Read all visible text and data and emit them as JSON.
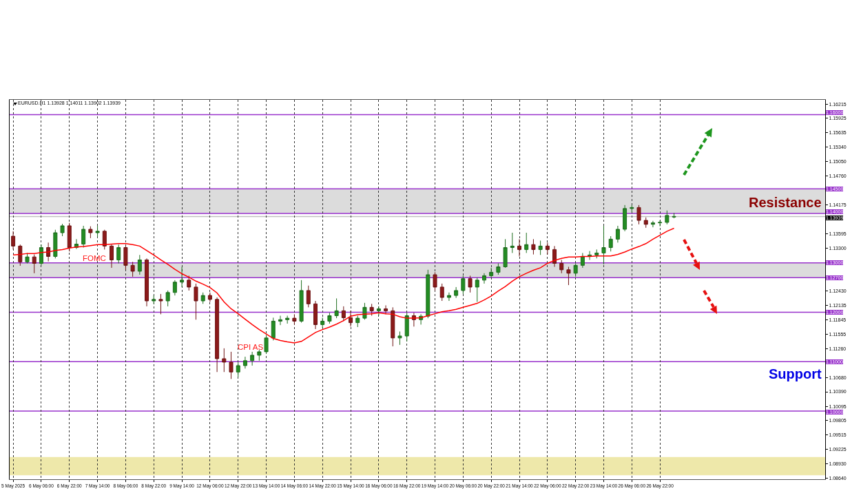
{
  "chart_data": {
    "type": "candlestick",
    "title": "EURUSD.H1 1.13928 1.14011 1.13902 1.13939",
    "categories": [
      "5 May 2025",
      null,
      null,
      null,
      "6 May 06:00",
      null,
      null,
      null,
      "6 May 22:00",
      null,
      null,
      null,
      "7 May 14:00",
      null,
      null,
      null,
      "8 May 06:00",
      null,
      null,
      null,
      "8 May 22:00",
      null,
      null,
      null,
      "9 May 14:00",
      null,
      null,
      null,
      "12 May 06:00",
      null,
      null,
      null,
      "12 May 22:00",
      null,
      null,
      null,
      "13 May 14:00",
      null,
      null,
      null,
      "14 May 06:00",
      null,
      null,
      null,
      "14 May 22:00",
      null,
      null,
      null,
      "15 May 14:00",
      null,
      null,
      null,
      "16 May 06:00",
      null,
      null,
      null,
      "16 May 22:00",
      null,
      null,
      null,
      "19 May 14:00",
      null,
      null,
      null,
      "20 May 06:00",
      null,
      null,
      null,
      "20 May 22:00",
      null,
      null,
      null,
      "21 May 14:00",
      null,
      null,
      null,
      "22 May 06:00",
      null,
      null,
      null,
      "22 May 22:00",
      null,
      null,
      null,
      "23 May 14:00",
      null,
      null,
      null,
      "26 May 06:00",
      null,
      null,
      null,
      "26 May 22:00",
      null,
      null,
      null,
      null,
      null,
      null,
      null,
      null,
      null,
      null,
      null,
      null,
      null,
      null,
      null,
      null,
      null,
      null,
      null,
      null,
      null,
      null,
      null
    ],
    "ohlc": [
      [
        1.1354,
        1.1364,
        1.1327,
        1.1334
      ],
      [
        1.1334,
        1.1337,
        1.1294,
        1.1302
      ],
      [
        1.1302,
        1.132,
        1.1299,
        1.1312
      ],
      [
        1.1312,
        1.1317,
        1.1279,
        1.1299
      ],
      [
        1.1299,
        1.1337,
        1.1295,
        1.1331
      ],
      [
        1.1331,
        1.1341,
        1.1303,
        1.1313
      ],
      [
        1.1313,
        1.1367,
        1.1309,
        1.1361
      ],
      [
        1.1361,
        1.1379,
        1.1354,
        1.1375
      ],
      [
        1.1375,
        1.1381,
        1.1323,
        1.1331
      ],
      [
        1.1331,
        1.1348,
        1.1328,
        1.1338
      ],
      [
        1.1338,
        1.1375,
        1.1331,
        1.1368
      ],
      [
        1.1368,
        1.1374,
        1.135,
        1.1361
      ],
      [
        1.1361,
        1.1375,
        1.1352,
        1.1364
      ],
      [
        1.1364,
        1.1367,
        1.1327,
        1.1334
      ],
      [
        1.1334,
        1.1337,
        1.129,
        1.1306
      ],
      [
        1.1306,
        1.1337,
        1.1299,
        1.1331
      ],
      [
        1.1331,
        1.1334,
        1.1286,
        1.1295
      ],
      [
        1.1295,
        1.1302,
        1.1272,
        1.1283
      ],
      [
        1.1283,
        1.1316,
        1.1276,
        1.1306
      ],
      [
        1.1306,
        1.1309,
        1.1212,
        1.1223
      ],
      [
        1.1223,
        1.1234,
        1.1217,
        1.1226
      ],
      [
        1.1226,
        1.1237,
        1.1196,
        1.1223
      ],
      [
        1.1223,
        1.1244,
        1.1212,
        1.124
      ],
      [
        1.124,
        1.1265,
        1.1234,
        1.1261
      ],
      [
        1.1261,
        1.1292,
        1.1251,
        1.1265
      ],
      [
        1.1265,
        1.1274,
        1.1244,
        1.1251
      ],
      [
        1.1251,
        1.1258,
        1.1185,
        1.1223
      ],
      [
        1.1223,
        1.124,
        1.1217,
        1.1234
      ],
      [
        1.1234,
        1.124,
        1.1221,
        1.1226
      ],
      [
        1.1226,
        1.123,
        1.1079,
        1.1106
      ],
      [
        1.1106,
        1.1127,
        1.1079,
        1.1099
      ],
      [
        1.1099,
        1.112,
        1.1065,
        1.1079
      ],
      [
        1.1079,
        1.1099,
        1.1069,
        1.1092
      ],
      [
        1.1092,
        1.111,
        1.1086,
        1.1102
      ],
      [
        1.1102,
        1.112,
        1.1092,
        1.1113
      ],
      [
        1.1113,
        1.1124,
        1.1102,
        1.112
      ],
      [
        1.112,
        1.1154,
        1.1116,
        1.1148
      ],
      [
        1.1148,
        1.1189,
        1.1143,
        1.1182
      ],
      [
        1.1182,
        1.1193,
        1.1174,
        1.1185
      ],
      [
        1.1185,
        1.1193,
        1.1177,
        1.1188
      ],
      [
        1.1188,
        1.1196,
        1.1175,
        1.1182
      ],
      [
        1.1182,
        1.1265,
        1.1179,
        1.1244
      ],
      [
        1.1244,
        1.1254,
        1.121,
        1.1217
      ],
      [
        1.1217,
        1.1223,
        1.1166,
        1.1175
      ],
      [
        1.1175,
        1.1189,
        1.1168,
        1.1182
      ],
      [
        1.1182,
        1.1199,
        1.1177,
        1.1193
      ],
      [
        1.1193,
        1.1228,
        1.1188,
        1.1203
      ],
      [
        1.1203,
        1.1212,
        1.1182,
        1.1189
      ],
      [
        1.1189,
        1.1203,
        1.1171,
        1.1179
      ],
      [
        1.1179,
        1.1193,
        1.117,
        1.1188
      ],
      [
        1.1188,
        1.1219,
        1.1185,
        1.121
      ],
      [
        1.121,
        1.1217,
        1.1193,
        1.1203
      ],
      [
        1.1203,
        1.1212,
        1.1193,
        1.1207
      ],
      [
        1.1207,
        1.1214,
        1.1196,
        1.1203
      ],
      [
        1.1203,
        1.121,
        1.1131,
        1.1148
      ],
      [
        1.1148,
        1.1161,
        1.1134,
        1.1152
      ],
      [
        1.1152,
        1.1199,
        1.1141,
        1.1193
      ],
      [
        1.1193,
        1.1199,
        1.1171,
        1.1185
      ],
      [
        1.1185,
        1.1196,
        1.1175,
        1.1192
      ],
      [
        1.1192,
        1.1286,
        1.1188,
        1.1276
      ],
      [
        1.1276,
        1.1281,
        1.1244,
        1.1251
      ],
      [
        1.1251,
        1.1258,
        1.1223,
        1.123
      ],
      [
        1.123,
        1.124,
        1.1223,
        1.1234
      ],
      [
        1.1234,
        1.1251,
        1.1229,
        1.1244
      ],
      [
        1.1244,
        1.1274,
        1.1237,
        1.1268
      ],
      [
        1.1268,
        1.1274,
        1.124,
        1.1251
      ],
      [
        1.1251,
        1.127,
        1.1221,
        1.1265
      ],
      [
        1.1265,
        1.1279,
        1.1258,
        1.1274
      ],
      [
        1.1274,
        1.129,
        1.127,
        1.1281
      ],
      [
        1.1281,
        1.1299,
        1.1276,
        1.1292
      ],
      [
        1.1292,
        1.1348,
        1.129,
        1.1331
      ],
      [
        1.1331,
        1.1361,
        1.132,
        1.1334
      ],
      [
        1.1334,
        1.1348,
        1.1313,
        1.1327
      ],
      [
        1.1327,
        1.1361,
        1.132,
        1.1337
      ],
      [
        1.1337,
        1.1348,
        1.1317,
        1.1327
      ],
      [
        1.1327,
        1.1345,
        1.1316,
        1.1334
      ],
      [
        1.1334,
        1.1341,
        1.1317,
        1.1327
      ],
      [
        1.1327,
        1.1334,
        1.1292,
        1.1299
      ],
      [
        1.1299,
        1.1306,
        1.1279,
        1.1286
      ],
      [
        1.1286,
        1.1292,
        1.1255,
        1.1279
      ],
      [
        1.1279,
        1.1299,
        1.1272,
        1.1295
      ],
      [
        1.1295,
        1.132,
        1.129,
        1.1313
      ],
      [
        1.1313,
        1.1324,
        1.1306,
        1.1316
      ],
      [
        1.1316,
        1.1327,
        1.1309,
        1.132
      ],
      [
        1.132,
        1.1375,
        1.1297,
        1.1331
      ],
      [
        1.1331,
        1.1354,
        1.1323,
        1.1348
      ],
      [
        1.1348,
        1.1375,
        1.1341,
        1.1368
      ],
      [
        1.1368,
        1.1417,
        1.1364,
        1.141
      ],
      [
        1.141,
        1.1417,
        1.1403,
        1.1412
      ],
      [
        1.1412,
        1.1417,
        1.1378,
        1.1386
      ],
      [
        1.1386,
        1.1392,
        1.1371,
        1.1378
      ],
      [
        1.1378,
        1.1385,
        1.1372,
        1.1381
      ],
      [
        1.1381,
        1.1386,
        1.1374,
        1.1382
      ],
      [
        1.1382,
        1.1406,
        1.1378,
        1.1396
      ],
      [
        1.13928,
        1.14011,
        1.13902,
        1.13939
      ],
      null,
      null,
      null,
      null,
      null,
      null,
      null,
      null,
      null,
      null,
      null,
      null,
      null,
      null,
      null,
      null,
      null,
      null,
      null,
      null,
      null
    ],
    "series": [
      {
        "type": "line",
        "color": "#ff0000",
        "values": [
          1.1316,
          1.1317,
          1.1319,
          1.1319,
          1.1321,
          1.1322,
          1.1325,
          1.1327,
          1.133,
          1.1332,
          1.1333,
          1.1335,
          1.1337,
          1.1337,
          1.1338,
          1.1339,
          1.1339,
          1.1337,
          1.1334,
          1.1325,
          1.1316,
          1.1306,
          1.1297,
          1.1287,
          1.1278,
          1.1271,
          1.1263,
          1.1257,
          1.125,
          1.1239,
          1.1221,
          1.1207,
          1.1197,
          1.1186,
          1.1175,
          1.1165,
          1.1156,
          1.1147,
          1.1143,
          1.114,
          1.1138,
          1.1141,
          1.115,
          1.1159,
          1.1165,
          1.117,
          1.1176,
          1.1183,
          1.1192,
          1.1195,
          1.1196,
          1.1197,
          1.1199,
          1.1197,
          1.1196,
          1.1191,
          1.1188,
          1.1188,
          1.1189,
          1.1193,
          1.1197,
          1.1201,
          1.1203,
          1.1206,
          1.121,
          1.1214,
          1.1218,
          1.1225,
          1.1233,
          1.1243,
          1.1252,
          1.1263,
          1.1272,
          1.1279,
          1.1285,
          1.129,
          1.1299,
          1.1305,
          1.1309,
          1.1312,
          1.1312,
          1.1313,
          1.1313,
          1.1314,
          1.1314,
          1.1314,
          1.1317,
          1.1322,
          1.1328,
          1.1333,
          1.1339,
          1.1348,
          1.1356,
          1.1364,
          1.137,
          null,
          null,
          null,
          null,
          null,
          null,
          null,
          null,
          null,
          null,
          null,
          null,
          null,
          null,
          null,
          null,
          null,
          null,
          null,
          null,
          null
        ]
      }
    ],
    "ylim": [
      1.0862,
      1.163
    ],
    "yticks": [
      1.16215,
      1.15925,
      1.15635,
      {
        "value": 1.1534,
        "label": "1.15340"
      },
      {
        "value": 1.1505,
        "label": "1.15050"
      },
      {
        "value": 1.1476,
        "label": "1.14760"
      },
      1.14175,
      1.13595,
      {
        "value": 1.133,
        "label": "1.13300"
      },
      {
        "value": 1.1243,
        "label": "1.12430"
      },
      1.12135,
      1.11845,
      1.11555,
      {
        "value": 1.1126,
        "label": "1.11260"
      },
      {
        "value": 1.1068,
        "label": "1.10680"
      },
      {
        "value": 1.1039,
        "label": "1.10390"
      },
      1.10095,
      1.09805,
      1.09515,
      1.09225,
      {
        "value": 1.0893,
        "label": "1.08930"
      },
      {
        "value": 1.0864,
        "label": "1.08640"
      }
    ],
    "ref_lines": [
      {
        "axis": "y",
        "value": 1.16,
        "label": "1.16000",
        "color": "#9932cc"
      },
      {
        "axis": "y",
        "value": 1.145,
        "label": "1.14500",
        "color": "#9932cc"
      },
      {
        "axis": "y",
        "value": 1.14,
        "label": "1.14000",
        "color": "#9932cc"
      },
      {
        "axis": "y",
        "value": 1.13939,
        "label": "1.13939",
        "color": "#c0c0c0"
      },
      {
        "axis": "y",
        "value": 1.13,
        "label": "1.13000",
        "color": "#9932cc"
      },
      {
        "axis": "y",
        "value": 1.127,
        "label": "1.12700",
        "color": "#9932cc"
      },
      {
        "axis": "y",
        "value": 1.12,
        "label": "1.12000",
        "color": "#9932cc"
      },
      {
        "axis": "y",
        "value": 1.11,
        "label": "1.11000",
        "color": "#9932cc"
      },
      {
        "axis": "y",
        "value": 1.1,
        "label": "1.10000",
        "color": "#9932cc"
      }
    ],
    "bands": [
      {
        "axis": "y",
        "from": 1.14,
        "to": 1.145,
        "color": "#dcdcdc"
      },
      {
        "axis": "y",
        "from": 1.127,
        "to": 1.13,
        "color": "#dcdcdc"
      },
      {
        "axis": "y",
        "from": 1.087,
        "to": 1.0907,
        "color": "#eee8aa"
      }
    ],
    "annotations": [
      "FOMC",
      "CPI AS",
      "Resistance",
      "Support"
    ],
    "grid": "x"
  }
}
